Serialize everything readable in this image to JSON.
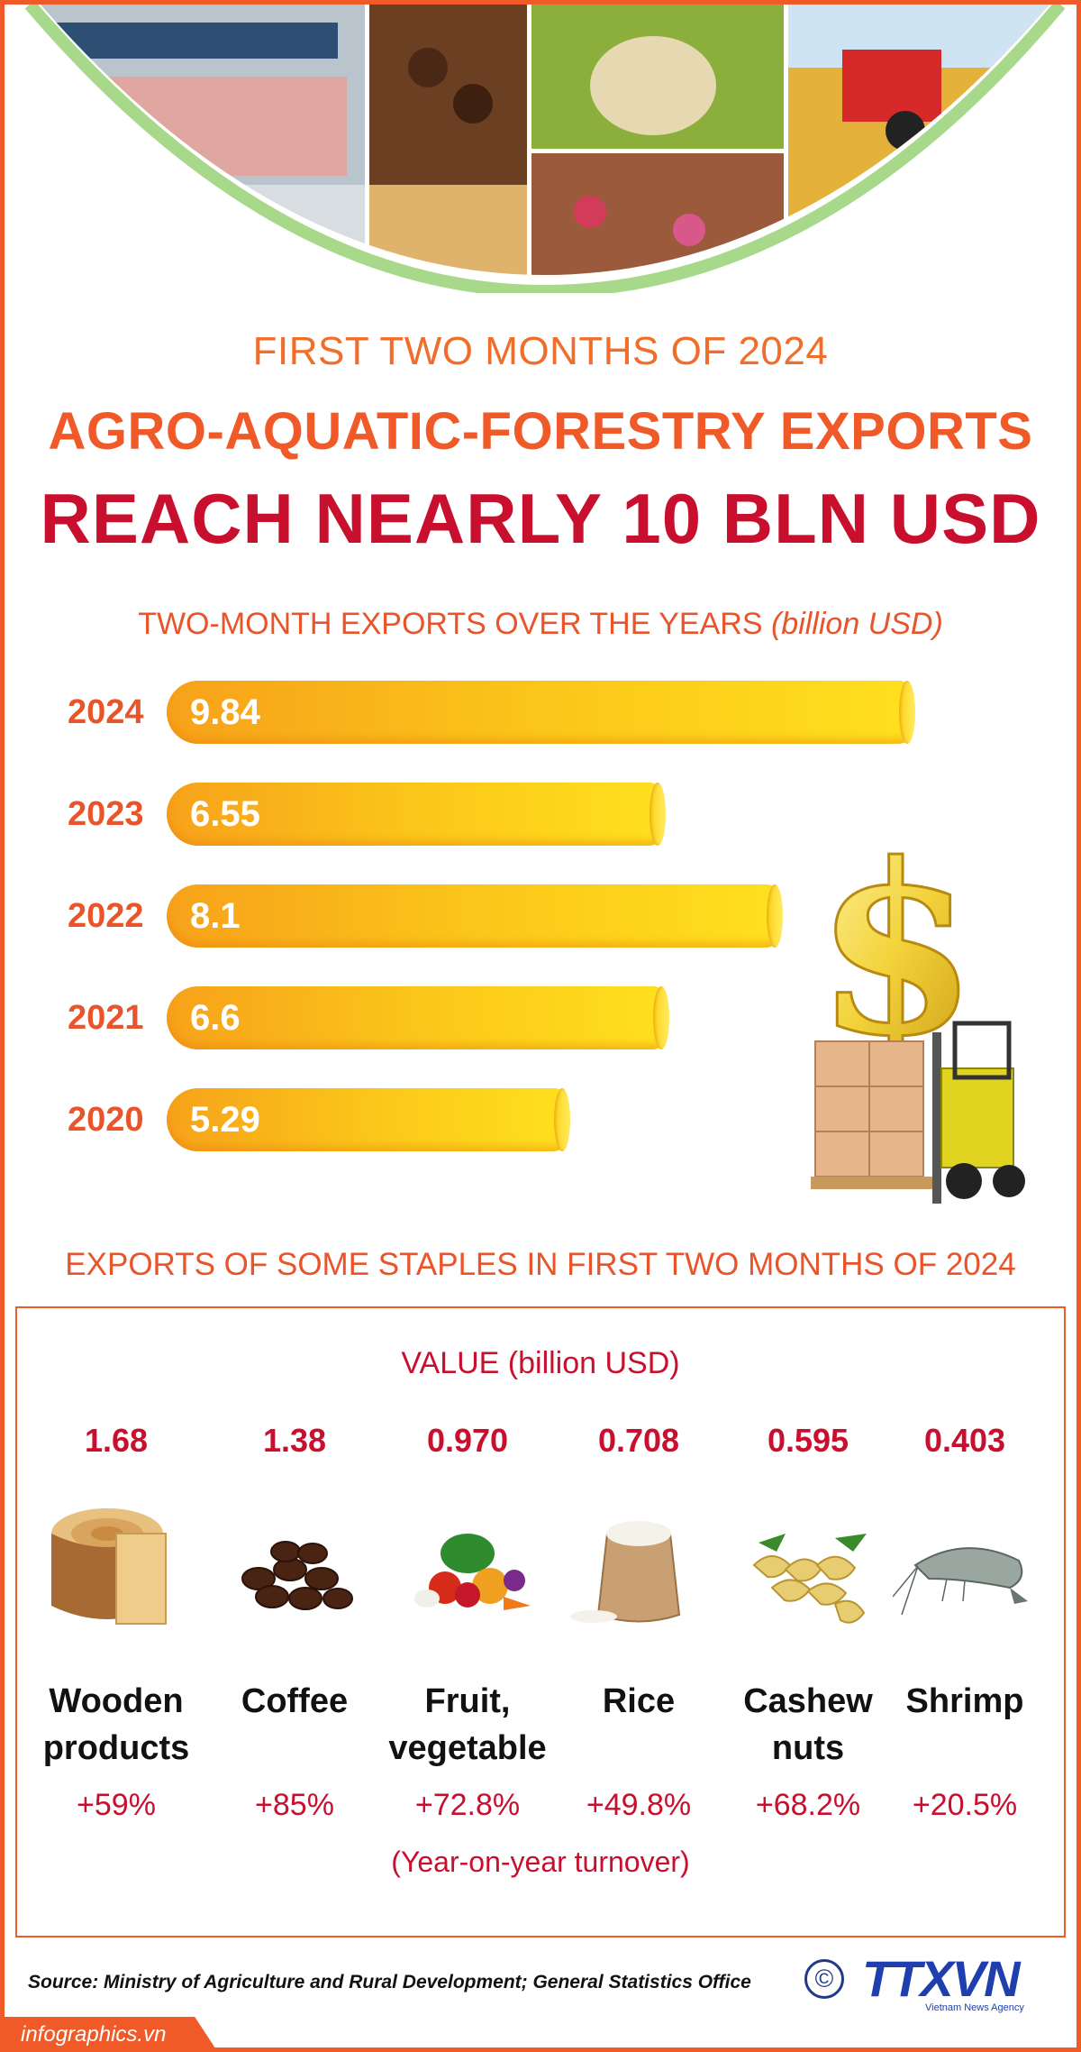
{
  "header": {
    "kicker": "FIRST TWO MONTHS OF 2024",
    "headline_line1": "AGRO-AQUATIC-FORESTRY EXPORTS",
    "headline_line2": "REACH NEARLY 10 BLN USD"
  },
  "chart1": {
    "title_main": "TWO-MONTH EXPORTS OVER THE YEARS",
    "title_unit": "(billion USD)"
  },
  "chart_data": {
    "type": "bar",
    "orientation": "horizontal",
    "title": "TWO-MONTH EXPORTS OVER THE YEARS (billion USD)",
    "categories": [
      "2024",
      "2023",
      "2022",
      "2021",
      "2020"
    ],
    "values": [
      9.84,
      6.55,
      8.1,
      6.6,
      5.29
    ],
    "value_labels": [
      "9.84",
      "6.55",
      "8.1",
      "6.6",
      "5.29"
    ],
    "xlim": [
      0,
      10
    ],
    "grid": false
  },
  "staples": {
    "title": "EXPORTS OF SOME STAPLES IN FIRST TWO MONTHS OF 2024",
    "value_label": "VALUE (billion USD)",
    "items": [
      {
        "name_line1": "Wooden",
        "name_line2": "products",
        "value": "1.68",
        "growth": "+59%",
        "icon": "wood-log-icon"
      },
      {
        "name_line1": "Coffee",
        "name_line2": "",
        "value": "1.38",
        "growth": "+85%",
        "icon": "coffee-beans-icon"
      },
      {
        "name_line1": "Fruit,",
        "name_line2": "vegetable",
        "value": "0.970",
        "growth": "+72.8%",
        "icon": "vegetables-icon"
      },
      {
        "name_line1": "Rice",
        "name_line2": "",
        "value": "0.708",
        "growth": "+49.8%",
        "icon": "rice-sack-icon"
      },
      {
        "name_line1": "Cashew",
        "name_line2": "nuts",
        "value": "0.595",
        "growth": "+68.2%",
        "icon": "cashew-icon"
      },
      {
        "name_line1": "Shrimp",
        "name_line2": "",
        "value": "0.403",
        "growth": "+20.5%",
        "icon": "shrimp-icon"
      }
    ],
    "note": "(Year-on-year turnover)"
  },
  "footer": {
    "source": "Source: Ministry of Agriculture and Rural Development;  General Statistics Office",
    "copyright": "©",
    "brand": "TTXVN",
    "brand_sub": "Vietnam News Agency",
    "site": "infographics.vn"
  },
  "colors": {
    "accent_orange": "#f05a28",
    "headline_red": "#c8102e",
    "bar_gradient_start": "#f7a21a",
    "bar_gradient_end": "#ffe01e",
    "brand_blue": "#1f3fae"
  }
}
